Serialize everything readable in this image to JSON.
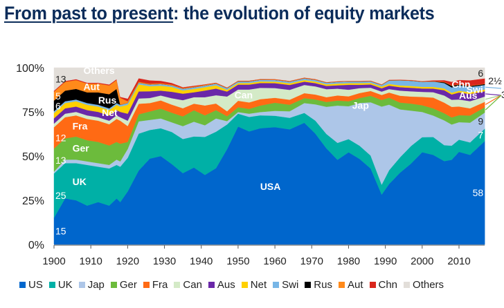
{
  "title": {
    "underlined": "From past to present",
    "rest": ": the evolution of equity markets"
  },
  "chart_data": {
    "type": "area",
    "stacked": true,
    "title": "From past to present: the evolution of equity markets",
    "xlabel": "",
    "ylabel": "",
    "xlim": [
      1900,
      2017
    ],
    "ylim": [
      0,
      100
    ],
    "x_ticks": [
      "1900",
      "1910",
      "1920",
      "1930",
      "1940",
      "1950",
      "1960",
      "1970",
      "1980",
      "1990",
      "2000",
      "2010"
    ],
    "y_ticks": [
      "0%",
      "25%",
      "50%",
      "75%",
      "100%"
    ],
    "legend_position": "bottom",
    "x": [
      1900,
      1903,
      1906,
      1909,
      1912,
      1915,
      1917,
      1918,
      1920,
      1923,
      1926,
      1929,
      1932,
      1935,
      1938,
      1941,
      1944,
      1947,
      1950,
      1953,
      1956,
      1960,
      1964,
      1968,
      1971,
      1974,
      1977,
      1980,
      1983,
      1986,
      1989,
      1991,
      1994,
      1997,
      2000,
      2003,
      2006,
      2008,
      2010,
      2013,
      2017
    ],
    "series": [
      {
        "name": "US",
        "color": "#0066cc",
        "label": "USA",
        "values": [
          15,
          26,
          25,
          22,
          24,
          22,
          26,
          24,
          30,
          42,
          51,
          54,
          50,
          44,
          47,
          42,
          46,
          58,
          73,
          70,
          72,
          72,
          70,
          74,
          68,
          60,
          50,
          56,
          52,
          47,
          30,
          35,
          42,
          46,
          55,
          50,
          47,
          48,
          53,
          50,
          58
        ]
      },
      {
        "name": "UK",
        "color": "#00b0a6",
        "label": "UK",
        "values": [
          25,
          20,
          21,
          23,
          20,
          21,
          19,
          20,
          19,
          21,
          17,
          17,
          20,
          21,
          19,
          23,
          22,
          15,
          8,
          9,
          8,
          7,
          7,
          6,
          8,
          9,
          10,
          8,
          8,
          8,
          6,
          8,
          9,
          10,
          9,
          10,
          9,
          8,
          7,
          7,
          7
        ]
      },
      {
        "name": "Jap",
        "color": "#adc6e8",
        "label": "Jap",
        "values": [
          1,
          2,
          2,
          2,
          2,
          2,
          3,
          3,
          5,
          7,
          6,
          6,
          6,
          8,
          9,
          7,
          8,
          2,
          1,
          2,
          2,
          3,
          4,
          6,
          10,
          17,
          22,
          20,
          26,
          33,
          47,
          38,
          28,
          20,
          15,
          12,
          14,
          12,
          10,
          11,
          9
        ]
      },
      {
        "name": "Ger",
        "color": "#6cbb3c",
        "label": "Ger",
        "values": [
          13,
          12,
          13,
          12,
          12,
          11,
          10,
          10,
          4,
          4,
          5,
          6,
          6,
          6,
          7,
          6,
          5,
          3,
          3,
          3,
          4,
          5,
          4,
          3,
          3,
          3,
          3,
          3,
          3,
          4,
          4,
          4,
          4,
          4,
          4,
          4,
          4,
          4,
          4,
          4,
          3
        ]
      },
      {
        "name": "Fra",
        "color": "#ff6a14",
        "label": "Fra",
        "values": [
          12,
          12,
          12,
          12,
          12,
          12,
          13,
          13,
          9,
          6,
          5,
          5,
          5,
          5,
          4,
          6,
          4,
          3,
          4,
          4,
          4,
          3,
          3,
          3,
          3,
          3,
          3,
          3,
          3,
          3,
          3,
          3,
          4,
          4,
          5,
          6,
          6,
          6,
          5,
          4,
          3
        ]
      },
      {
        "name": "Can",
        "color": "#d4eac7",
        "label": "Can",
        "values": [
          2,
          2,
          2,
          2,
          2,
          2,
          2,
          2,
          3,
          3,
          3,
          3,
          4,
          5,
          4,
          5,
          5,
          9,
          7,
          8,
          7,
          6,
          6,
          5,
          5,
          5,
          4,
          4,
          3,
          2,
          2,
          2,
          3,
          3,
          3,
          3,
          4,
          4,
          4,
          4,
          3
        ]
      },
      {
        "name": "Aus",
        "color": "#6a28a8",
        "label": "Aus",
        "values": [
          3,
          3,
          3,
          3,
          3,
          3,
          3,
          3,
          4,
          4,
          4,
          3,
          4,
          4,
          3,
          4,
          4,
          3,
          3,
          3,
          3,
          3,
          3,
          2,
          2,
          2,
          2,
          3,
          2,
          2,
          2,
          2,
          2,
          2,
          2,
          2,
          3,
          3,
          4,
          4,
          3
        ]
      },
      {
        "name": "Net",
        "color": "#ffd000",
        "label": "Net",
        "values": [
          3,
          3,
          3,
          3,
          3,
          3,
          3,
          3,
          5,
          4,
          3,
          3,
          3,
          2,
          2,
          2,
          2,
          1,
          1,
          1,
          1,
          1,
          1,
          1,
          1,
          1,
          1,
          1,
          1,
          1,
          1,
          1,
          1,
          1,
          1,
          1,
          1,
          1,
          1,
          1,
          1
        ]
      },
      {
        "name": "Swi",
        "color": "#77b6e6",
        "label": "Swi",
        "values": [
          1,
          1,
          1,
          1,
          1,
          1,
          1,
          1,
          1,
          1,
          1,
          1,
          1,
          1,
          1,
          1,
          1,
          1,
          1,
          1,
          1,
          1,
          1,
          1,
          1,
          1,
          1,
          1,
          1,
          1,
          1,
          2,
          3,
          3,
          3,
          3,
          3,
          3,
          3,
          3,
          2.5
        ]
      },
      {
        "name": "Rus",
        "color": "#000000",
        "label": "Rus",
        "values": [
          6,
          6,
          6,
          6,
          7,
          8,
          8,
          0,
          0,
          0,
          0,
          0,
          0,
          0,
          0,
          0,
          0,
          0,
          0,
          0,
          0,
          0,
          0,
          0,
          0,
          0,
          0,
          0,
          0,
          0,
          0,
          0,
          0,
          0,
          0,
          0,
          0.5,
          1,
          0.5,
          0.5,
          0.5
        ]
      },
      {
        "name": "Aut",
        "color": "#ff8a1a",
        "label": "Aut",
        "values": [
          5,
          5,
          5,
          5,
          5,
          5,
          5,
          4,
          1,
          0.5,
          0.5,
          0.5,
          0.5,
          0.5,
          0.5,
          0.5,
          0.3,
          0.3,
          0.3,
          0.3,
          0.3,
          0.3,
          0.3,
          0.3,
          0.3,
          0.2,
          0.2,
          0.2,
          0.2,
          0.2,
          0.2,
          0.2,
          0.2,
          0.2,
          0.2,
          0.2,
          0.2,
          0.2,
          0.2,
          0.2,
          0.2
        ]
      },
      {
        "name": "Chn",
        "color": "#d9261c",
        "label": "Chn",
        "values": [
          0.5,
          0.5,
          0.5,
          0.5,
          0.5,
          0.5,
          0.5,
          0.5,
          1.5,
          2,
          2,
          1.5,
          1,
          0.5,
          0.5,
          0.3,
          0.3,
          0.2,
          0.2,
          0.2,
          0.2,
          0.2,
          0.2,
          0.2,
          0.2,
          0.2,
          0.2,
          0.2,
          0.2,
          0.2,
          0.2,
          0.2,
          0.2,
          0.2,
          0.2,
          0.5,
          1,
          2,
          2.5,
          3,
          3
        ]
      },
      {
        "name": "Others",
        "color": "#e2ded9",
        "label": "Others",
        "values": [
          13,
          7.5,
          6.5,
          8.5,
          8.5,
          9.5,
          6.5,
          16.5,
          17.5,
          6,
          7.5,
          8,
          9.5,
          12,
          11,
          10,
          9,
          12,
          8,
          8,
          7,
          7,
          8,
          6,
          7,
          9,
          8,
          8,
          8,
          8,
          10,
          7,
          7,
          7,
          8,
          7,
          7,
          8,
          7,
          7,
          6
        ]
      }
    ],
    "annotations": {
      "start_values": [
        {
          "series": "US",
          "text": "15"
        },
        {
          "series": "UK",
          "text": "25"
        },
        {
          "series": "Ger",
          "text": "13"
        },
        {
          "series": "Fra",
          "text": "12"
        },
        {
          "series": "Rus",
          "text": "6"
        },
        {
          "series": "Aut",
          "text": "5"
        },
        {
          "series": "Others",
          "text": "13"
        }
      ],
      "end_values": [
        {
          "series": "US",
          "text": "58"
        },
        {
          "series": "UK",
          "text": "7"
        },
        {
          "series": "Jap",
          "text": "9"
        },
        {
          "series": "Others",
          "text": "6"
        },
        {
          "series": "Swi",
          "text": "2½"
        },
        {
          "series": "Aus/Can/Fra/Ger",
          "text": "3"
        }
      ]
    }
  },
  "legend": [
    {
      "label": "US",
      "color": "#0066cc"
    },
    {
      "label": "UK",
      "color": "#00b0a6"
    },
    {
      "label": "Jap",
      "color": "#adc6e8"
    },
    {
      "label": "Ger",
      "color": "#6cbb3c"
    },
    {
      "label": "Fra",
      "color": "#ff6a14"
    },
    {
      "label": "Can",
      "color": "#d4eac7"
    },
    {
      "label": "Aus",
      "color": "#6a28a8"
    },
    {
      "label": "Net",
      "color": "#ffd000"
    },
    {
      "label": "Swi",
      "color": "#77b6e6"
    },
    {
      "label": "Rus",
      "color": "#000000"
    },
    {
      "label": "Aut",
      "color": "#ff8a1a"
    },
    {
      "label": "Chn",
      "color": "#d9261c"
    },
    {
      "label": "Others",
      "color": "#e2ded9"
    }
  ]
}
